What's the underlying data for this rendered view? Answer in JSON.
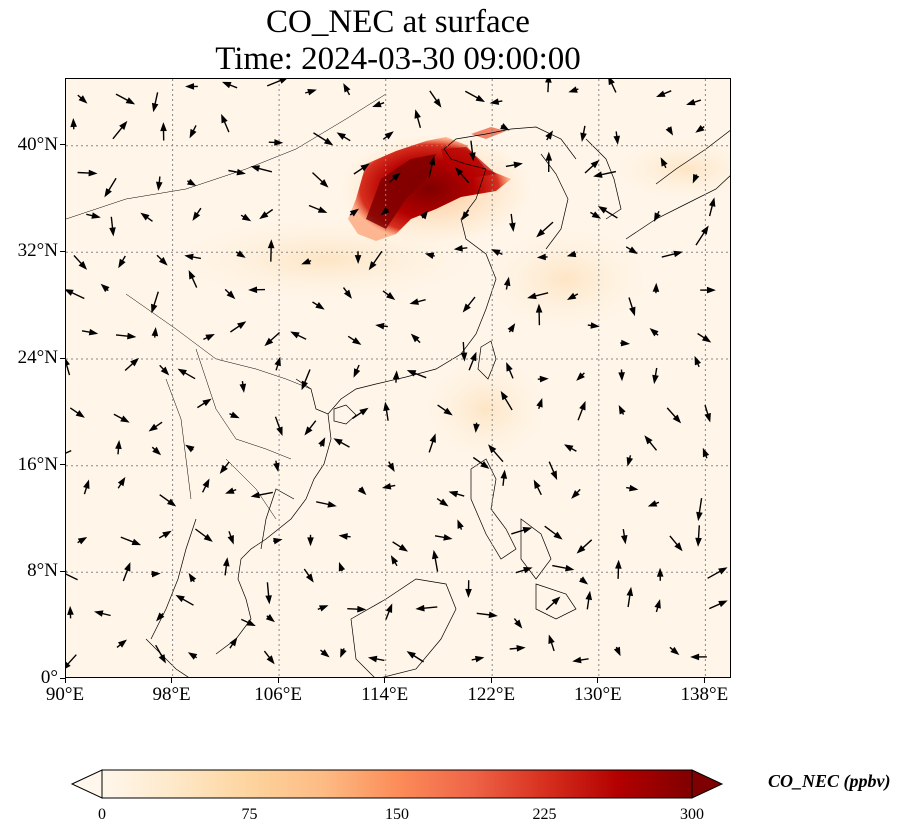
{
  "title": {
    "line1": "CO_NEC at surface",
    "line2": "Time: 2024-03-30 09:00:00"
  },
  "map": {
    "projection": "PlateCarree",
    "lon_range": [
      90,
      140
    ],
    "lat_range": [
      0,
      45
    ],
    "gridlines": "dotted",
    "coastlines": true,
    "country_borders": true,
    "wind_vectors": true,
    "plume_color_ramp": "OrRd"
  },
  "axes": {
    "x_ticks": [
      {
        "value": 90,
        "label": "90°E"
      },
      {
        "value": 98,
        "label": "98°E"
      },
      {
        "value": 106,
        "label": "106°E"
      },
      {
        "value": 114,
        "label": "114°E"
      },
      {
        "value": 122,
        "label": "122°E"
      },
      {
        "value": 130,
        "label": "130°E"
      },
      {
        "value": 138,
        "label": "138°E"
      }
    ],
    "y_ticks": [
      {
        "value": 0,
        "label": "0°"
      },
      {
        "value": 8,
        "label": "8°N"
      },
      {
        "value": 16,
        "label": "16°N"
      },
      {
        "value": 24,
        "label": "24°N"
      },
      {
        "value": 32,
        "label": "32°N"
      },
      {
        "value": 40,
        "label": "40°N"
      }
    ]
  },
  "colorbar": {
    "label": "CO_NEC (ppbv)",
    "min": 0,
    "max": 300,
    "ticks": [
      "0",
      "75",
      "150",
      "225",
      "300"
    ],
    "colors": [
      "#fff7ec",
      "#fee8c8",
      "#fdd49e",
      "#fdbb84",
      "#fc8d59",
      "#ef6548",
      "#d7301f",
      "#b30000",
      "#7f0000"
    ],
    "extend": "both"
  }
}
